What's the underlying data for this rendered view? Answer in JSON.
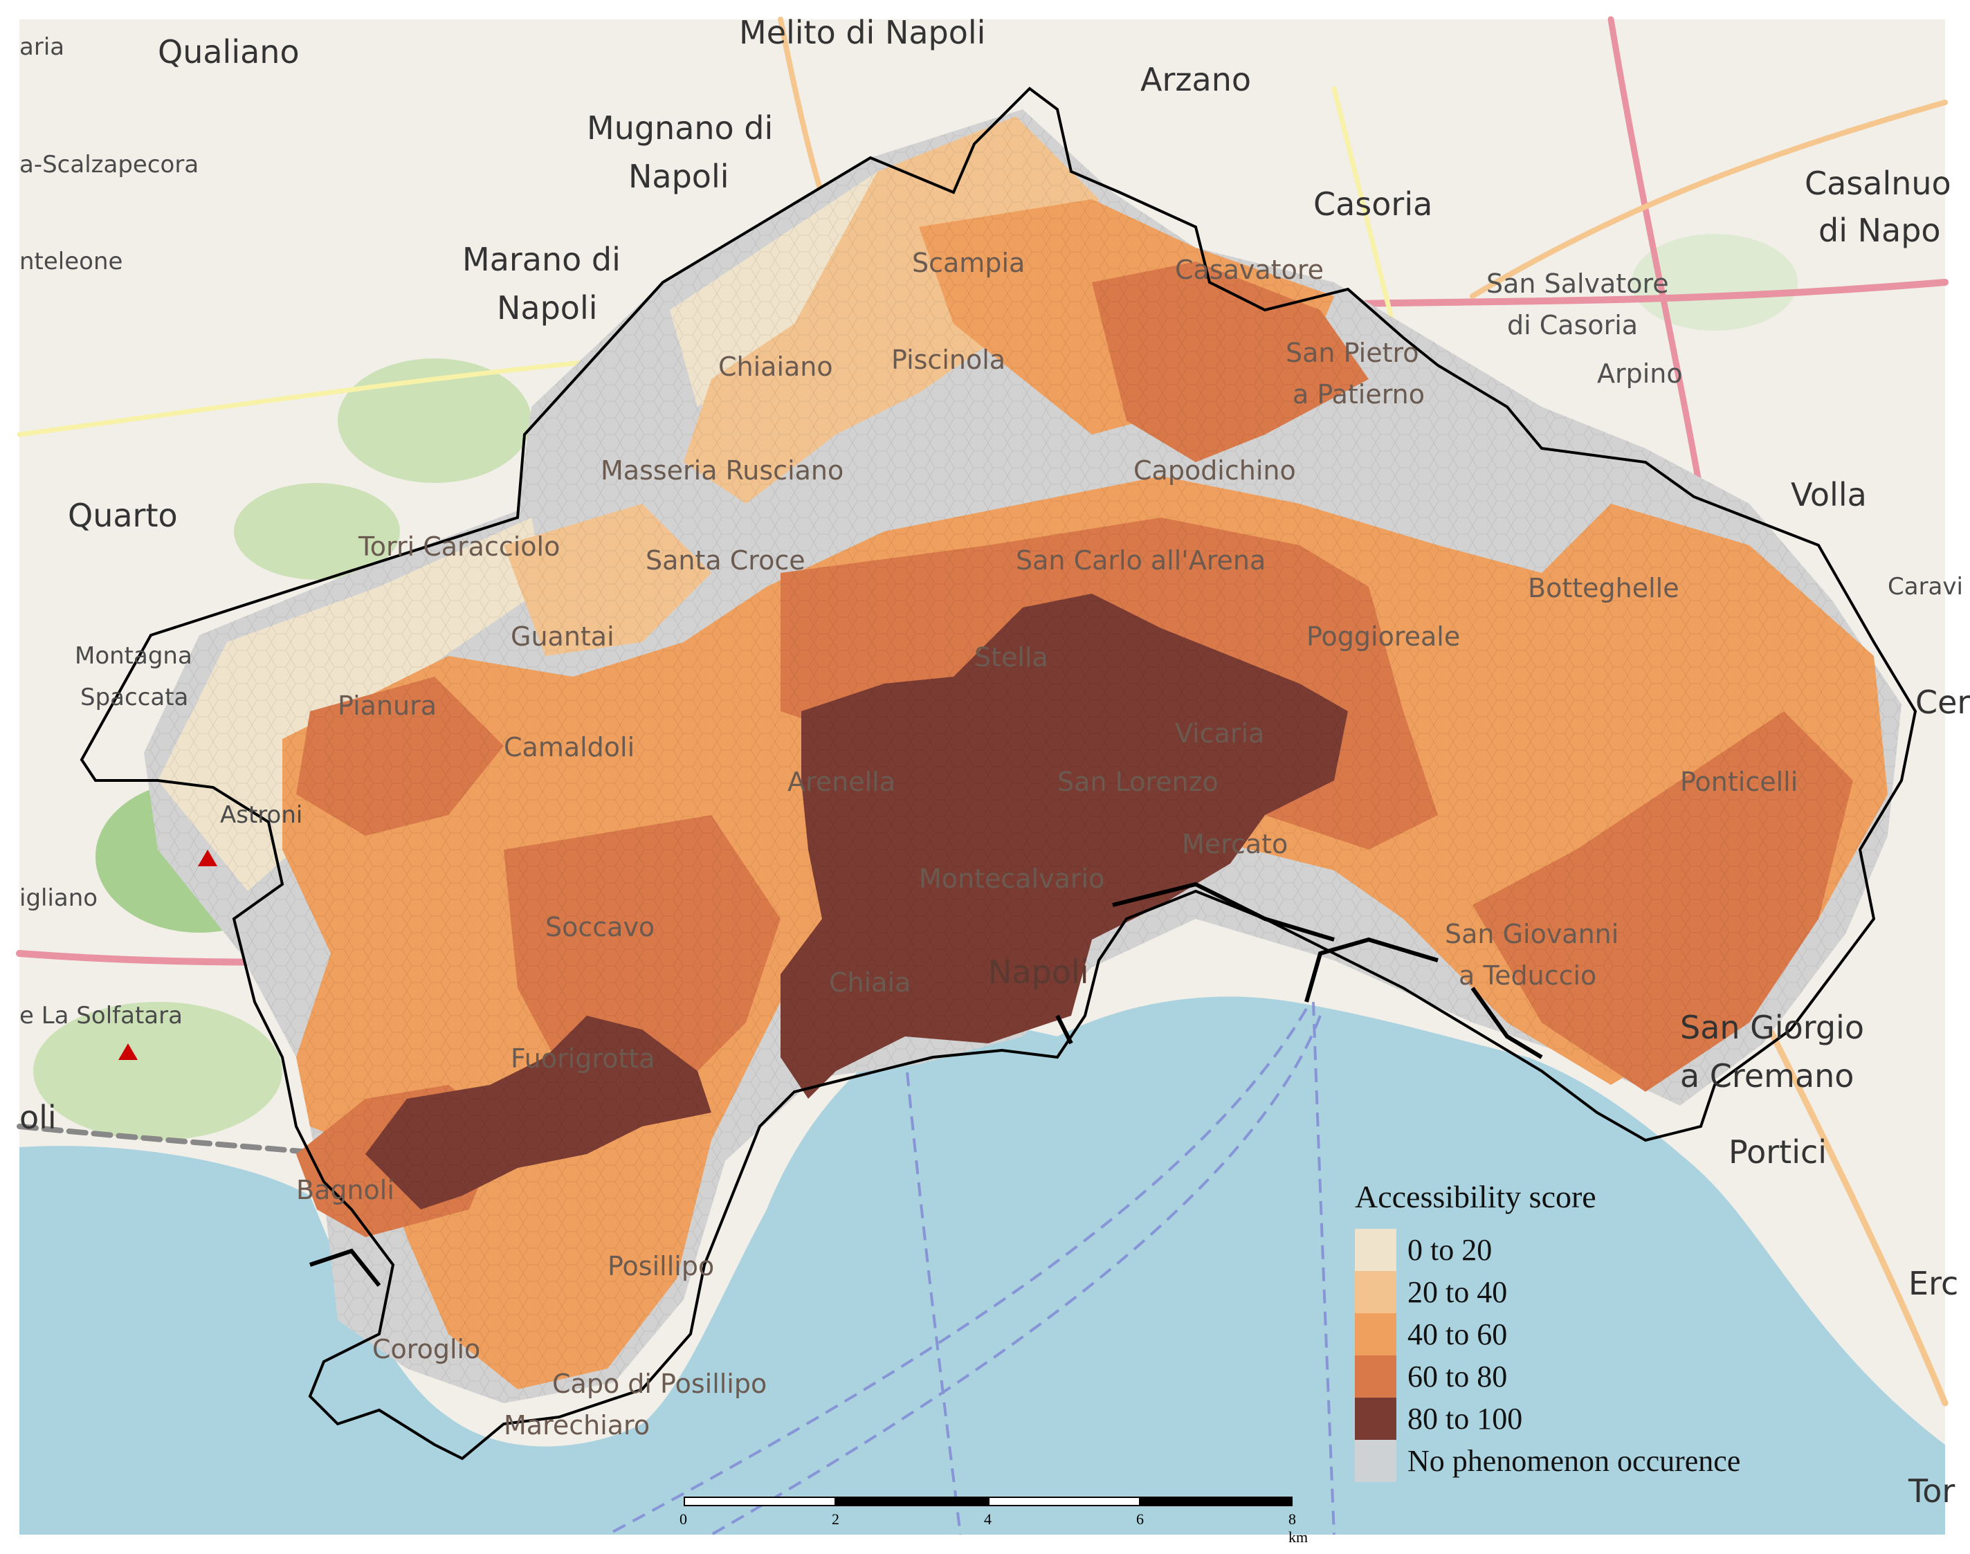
{
  "map": {
    "places_outside": [
      {
        "id": "qualiano",
        "text": "Qualiano"
      },
      {
        "id": "melito",
        "text": "Melito di Napoli"
      },
      {
        "id": "arzano",
        "text": "Arzano"
      },
      {
        "id": "mugnano",
        "text": "Mugnano di"
      },
      {
        "id": "mugnano2",
        "text": "Napoli"
      },
      {
        "id": "casoria",
        "text": "Casoria"
      },
      {
        "id": "casalnuovo",
        "text": "Casalnuo"
      },
      {
        "id": "casalnuovo2",
        "text": "di Napo"
      },
      {
        "id": "scalzapecora",
        "text": "a-Scalzapecora"
      },
      {
        "id": "teleone",
        "text": "nteleone"
      },
      {
        "id": "marano",
        "text": "Marano di"
      },
      {
        "id": "marano2",
        "text": "Napoli"
      },
      {
        "id": "sansalvatore",
        "text": "San Salvatore"
      },
      {
        "id": "sansalvatore2",
        "text": "di Casoria"
      },
      {
        "id": "arpino",
        "text": "Arpino"
      },
      {
        "id": "volla",
        "text": "Volla"
      },
      {
        "id": "quarto",
        "text": "Quarto"
      },
      {
        "id": "caravi",
        "text": "Caravi"
      },
      {
        "id": "cer",
        "text": "Cer"
      },
      {
        "id": "montagna",
        "text": "Montagna"
      },
      {
        "id": "spaccata",
        "text": "Spaccata"
      },
      {
        "id": "astroni",
        "text": "Astroni"
      },
      {
        "id": "igliano",
        "text": "igliano"
      },
      {
        "id": "solfatara",
        "text": "e La Solfatara"
      },
      {
        "id": "oli",
        "text": "oli"
      },
      {
        "id": "portici",
        "text": "Portici"
      },
      {
        "id": "ero",
        "text": "Erc"
      },
      {
        "id": "tor",
        "text": "Tor"
      },
      {
        "id": "aria",
        "text": "aria"
      }
    ],
    "districts": [
      {
        "id": "scampia",
        "text": "Scampia"
      },
      {
        "id": "casavatore",
        "text": "Casavatore"
      },
      {
        "id": "chiaiano",
        "text": "Chiaiano"
      },
      {
        "id": "piscinola",
        "text": "Piscinola"
      },
      {
        "id": "sanpietro",
        "text": "San Pietro"
      },
      {
        "id": "apaterno",
        "text": "a Patierno"
      },
      {
        "id": "masseria",
        "text": "Masseria Rusciano"
      },
      {
        "id": "capodichino",
        "text": "Capodichino"
      },
      {
        "id": "torricaracciolo",
        "text": "Torri Caracciolo"
      },
      {
        "id": "santacroce",
        "text": "Santa Croce"
      },
      {
        "id": "sancarlo",
        "text": "San Carlo all'Arena"
      },
      {
        "id": "botteghelle",
        "text": "Botteghelle"
      },
      {
        "id": "guantai",
        "text": "Guantai"
      },
      {
        "id": "poggioreale",
        "text": "Poggioreale"
      },
      {
        "id": "stella",
        "text": "Stella"
      },
      {
        "id": "pianura",
        "text": "Pianura"
      },
      {
        "id": "camaldoli",
        "text": "Camaldoli"
      },
      {
        "id": "vicaria",
        "text": "Vicaria"
      },
      {
        "id": "arenella",
        "text": "Arenella"
      },
      {
        "id": "sanlorenzo",
        "text": "San Lorenzo"
      },
      {
        "id": "ponticelli",
        "text": "Ponticelli"
      },
      {
        "id": "mercato",
        "text": "Mercato"
      },
      {
        "id": "montecalvario",
        "text": "Montecalvario"
      },
      {
        "id": "soccavo",
        "text": "Soccavo"
      },
      {
        "id": "sangiovanni",
        "text": "San Giovanni"
      },
      {
        "id": "ateduccio",
        "text": "a Teduccio"
      },
      {
        "id": "chiaia",
        "text": "Chiaia"
      },
      {
        "id": "napoli",
        "text": "Napoli"
      },
      {
        "id": "sangiorgio",
        "text": "San Giorgio"
      },
      {
        "id": "cremano",
        "text": "a Cremano"
      },
      {
        "id": "fuorigrotta",
        "text": "Fuorigrotta"
      },
      {
        "id": "bagnoli",
        "text": "Bagnoli"
      },
      {
        "id": "posillipo",
        "text": "Posillipo"
      },
      {
        "id": "coroglio",
        "text": "Coroglio"
      },
      {
        "id": "capoposillipo",
        "text": "Capo di Posillipo"
      },
      {
        "id": "marechiaro",
        "text": "Marechiaro"
      }
    ],
    "colors": {
      "sea": "#aad3df",
      "land": "#f2efe9",
      "park": "#c8e0b0",
      "no_data": "#d0d0d0",
      "boundary": "#000000"
    }
  },
  "legend": {
    "title": "Accessibility score",
    "items": [
      {
        "label": "0 to 20",
        "color": "#efe3cb"
      },
      {
        "label": "20 to 40",
        "color": "#f2c38f"
      },
      {
        "label": "40 to 60",
        "color": "#f0a05e"
      },
      {
        "label": "60 to 80",
        "color": "#d9794a"
      },
      {
        "label": "80 to 100",
        "color": "#7a3b32"
      },
      {
        "label": "No phenomenon occurence",
        "color": "#cfd2d4"
      }
    ]
  },
  "scalebar": {
    "ticks": [
      "0",
      "2",
      "4",
      "6",
      "8 km"
    ]
  }
}
